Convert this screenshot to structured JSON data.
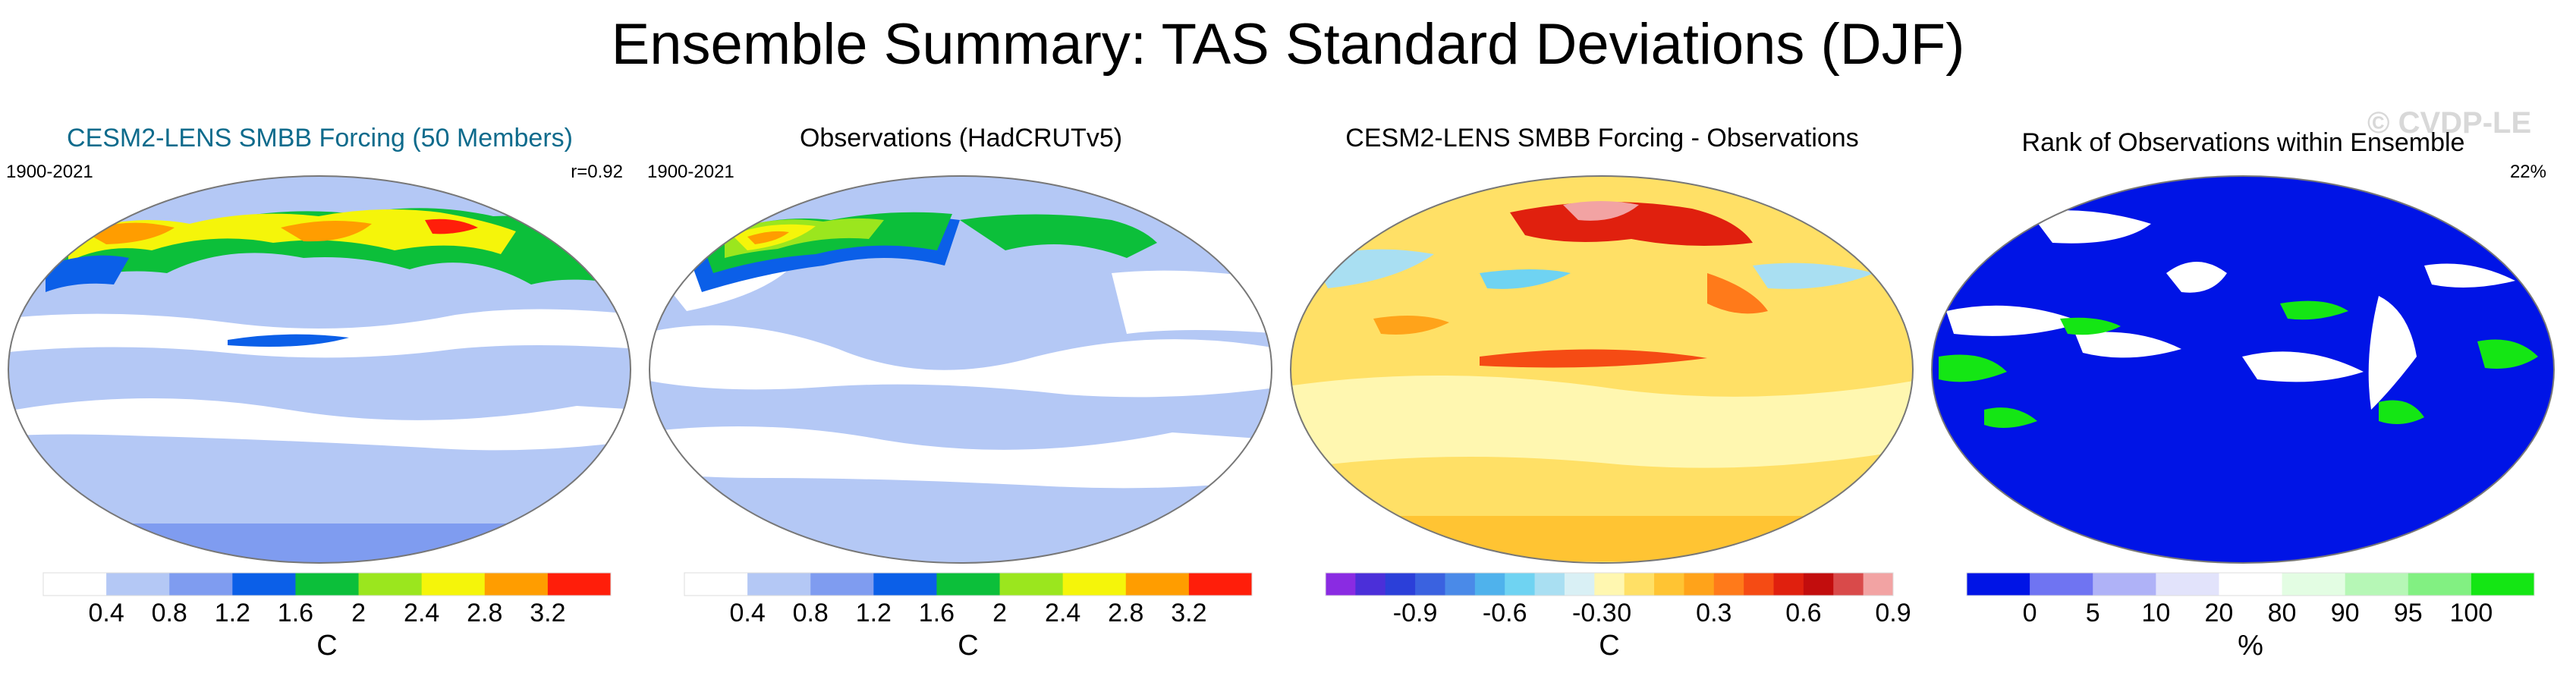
{
  "title": "Ensemble Summary: TAS Standard Deviations (DJF)",
  "watermark": "© CVDP-LE",
  "panels": [
    {
      "title": "CESM2-LENS SMBB Forcing (50 Members)",
      "period": "1900-2021",
      "stat": "r=0.92",
      "colorbar": {
        "colors": [
          "#ffffff",
          "#b4c8f5",
          "#7f9cf0",
          "#0b5fe8",
          "#0cbf3a",
          "#9be61e",
          "#f5f50a",
          "#ff9d00",
          "#ff1e0a"
        ],
        "labels": [
          "0.4",
          "0.8",
          "1.2",
          "1.6",
          "2",
          "2.4",
          "2.8",
          "3.2"
        ],
        "unit": "C"
      }
    },
    {
      "title": "Observations (HadCRUTv5)",
      "period": "1900-2021",
      "stat": "",
      "colorbar": {
        "colors": [
          "#ffffff",
          "#b4c8f5",
          "#7f9cf0",
          "#0b5fe8",
          "#0cbf3a",
          "#9be61e",
          "#f5f50a",
          "#ff9d00",
          "#ff1e0a"
        ],
        "labels": [
          "0.4",
          "0.8",
          "1.2",
          "1.6",
          "2",
          "2.4",
          "2.8",
          "3.2"
        ],
        "unit": "C"
      }
    },
    {
      "title": "CESM2-LENS SMBB Forcing - Observations",
      "period": "",
      "stat": "",
      "colorbar": {
        "colors": [
          "#8a2be2",
          "#4b2fd9",
          "#2b3fd9",
          "#3a62e0",
          "#4a8ae8",
          "#4fb2ec",
          "#6fd3f2",
          "#a9dff2",
          "#d9f0f5",
          "#fff7b0",
          "#ffe066",
          "#ffc433",
          "#ffa31a",
          "#ff7a1a",
          "#f54b14",
          "#e0200e",
          "#c20d0d",
          "#d94a4a",
          "#f2a3a3"
        ],
        "labels": [
          "-0.9",
          "-0.6",
          "-0.3",
          "0",
          "0.3",
          "0.6",
          "0.9"
        ],
        "unit": "C"
      }
    },
    {
      "title": "Rank of Observations within Ensemble",
      "period": "",
      "stat": "22%",
      "colorbar": {
        "colors": [
          "#0014e6",
          "#6f74f2",
          "#afb2f7",
          "#e2e3fb",
          "#ffffff",
          "#e3fde3",
          "#b6f7b6",
          "#82f082",
          "#14e614"
        ],
        "labels": [
          "0",
          "5",
          "10",
          "20",
          "80",
          "90",
          "95",
          "100"
        ],
        "unit": "%"
      }
    }
  ],
  "chart_data": [
    {
      "type": "heatmap",
      "title": "CESM2-LENS SMBB Forcing (50 Members)",
      "period": "1900-2021",
      "pattern_correlation": 0.92,
      "variable": "TAS standard deviation (DJF)",
      "units": "C",
      "contour_levels": [
        0.4,
        0.8,
        1.2,
        1.6,
        2,
        2.4,
        2.8,
        3.2
      ]
    },
    {
      "type": "heatmap",
      "title": "Observations (HadCRUTv5)",
      "period": "1900-2021",
      "variable": "TAS standard deviation (DJF)",
      "units": "C",
      "contour_levels": [
        0.4,
        0.8,
        1.2,
        1.6,
        2,
        2.4,
        2.8,
        3.2
      ]
    },
    {
      "type": "heatmap",
      "title": "CESM2-LENS SMBB Forcing - Observations",
      "variable": "TAS standard deviation difference (DJF)",
      "units": "C",
      "contour_levels": [
        -0.9,
        -0.8,
        -0.7,
        -0.6,
        -0.5,
        -0.4,
        -0.3,
        -0.2,
        -0.1,
        0,
        0.1,
        0.2,
        0.3,
        0.4,
        0.5,
        0.6,
        0.7,
        0.8,
        0.9
      ]
    },
    {
      "type": "heatmap",
      "title": "Rank of Observations within Ensemble",
      "percent_within_10_90": 22,
      "units": "%",
      "rank_levels": [
        0,
        5,
        10,
        20,
        80,
        90,
        95,
        100
      ]
    }
  ]
}
